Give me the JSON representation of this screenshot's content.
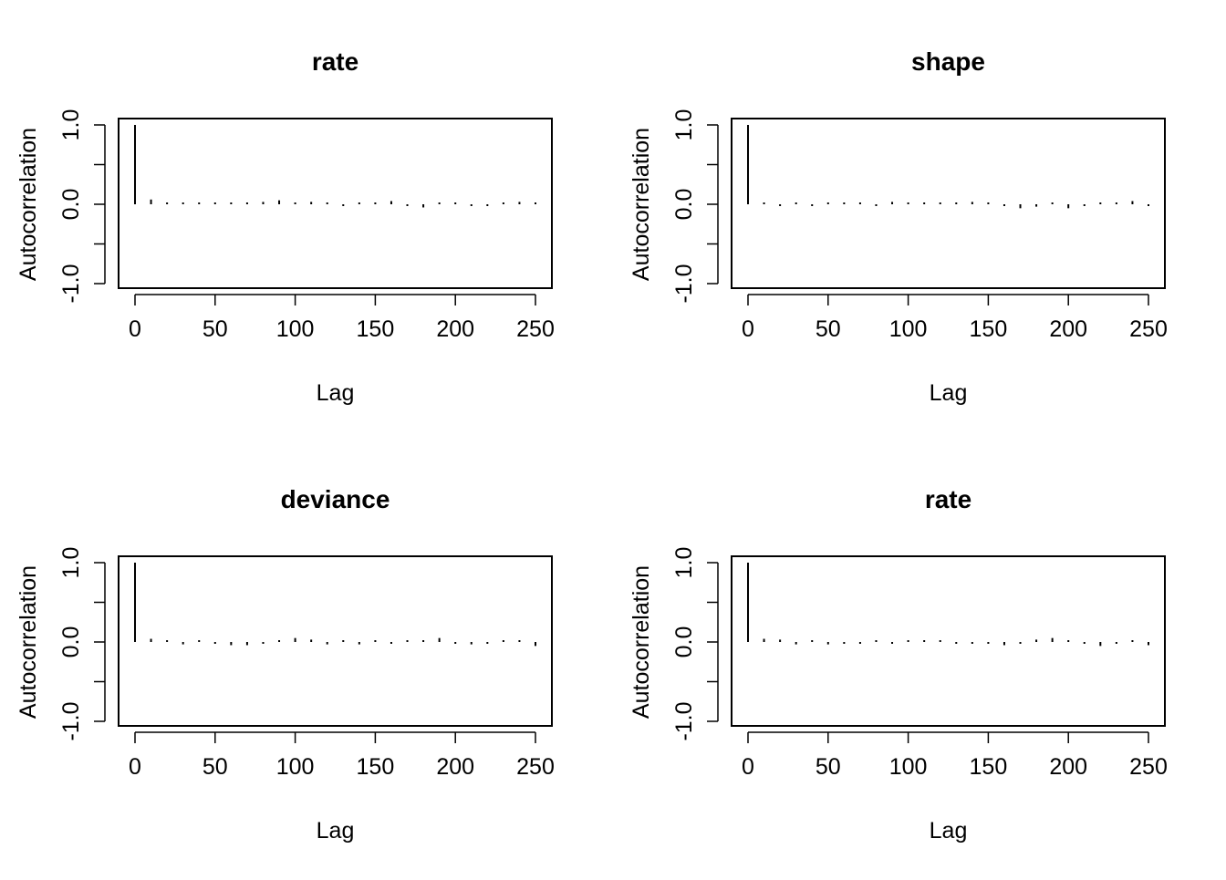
{
  "chart_data": [
    {
      "type": "bar",
      "title": "rate",
      "xlabel": "Lag",
      "ylabel": "Autocorrelation",
      "xlim": [
        0,
        250
      ],
      "ylim": [
        -1,
        1
      ],
      "x_ticks": [
        "0",
        "50",
        "100",
        "150",
        "200",
        "250"
      ],
      "y_ticks": [
        "-1.0",
        "0.0",
        "1.0"
      ],
      "grid": false,
      "x": [
        0,
        10,
        20,
        30,
        40,
        50,
        60,
        70,
        80,
        90,
        100,
        110,
        120,
        130,
        140,
        150,
        160,
        170,
        180,
        190,
        200,
        210,
        220,
        230,
        240,
        250
      ],
      "values": [
        1.0,
        0.06,
        0.01,
        0.01,
        0.0,
        0.01,
        0.02,
        0.02,
        0.03,
        0.05,
        0.01,
        0.03,
        0.02,
        -0.02,
        0.02,
        0.0,
        0.04,
        -0.02,
        -0.04,
        0.01,
        0.0,
        -0.01,
        -0.01,
        0.0,
        0.03,
        0.0
      ]
    },
    {
      "type": "bar",
      "title": "shape",
      "xlabel": "Lag",
      "ylabel": "Autocorrelation",
      "xlim": [
        0,
        250
      ],
      "ylim": [
        -1,
        1
      ],
      "x_ticks": [
        "0",
        "50",
        "100",
        "150",
        "200",
        "250"
      ],
      "y_ticks": [
        "-1.0",
        "0.0",
        "1.0"
      ],
      "grid": false,
      "x": [
        0,
        10,
        20,
        30,
        40,
        50,
        60,
        70,
        80,
        90,
        100,
        110,
        120,
        130,
        140,
        150,
        160,
        170,
        180,
        190,
        200,
        210,
        220,
        230,
        240,
        250
      ],
      "values": [
        1.0,
        0.01,
        -0.01,
        0.0,
        -0.02,
        0.0,
        0.01,
        0.01,
        -0.02,
        0.03,
        0.01,
        0.01,
        0.02,
        0.02,
        0.03,
        0.01,
        -0.02,
        -0.05,
        -0.03,
        0.02,
        -0.05,
        -0.02,
        0.0,
        0.01,
        0.04,
        -0.01
      ]
    },
    {
      "type": "bar",
      "title": "deviance",
      "xlabel": "Lag",
      "ylabel": "Autocorrelation",
      "xlim": [
        0,
        250
      ],
      "ylim": [
        -1,
        1
      ],
      "x_ticks": [
        "0",
        "50",
        "100",
        "150",
        "200",
        "250"
      ],
      "y_ticks": [
        "-1.0",
        "0.0",
        "1.0"
      ],
      "grid": false,
      "x": [
        0,
        10,
        20,
        30,
        40,
        50,
        60,
        70,
        80,
        90,
        100,
        110,
        120,
        130,
        140,
        150,
        160,
        170,
        180,
        190,
        200,
        210,
        220,
        230,
        240,
        250
      ],
      "values": [
        1.0,
        0.04,
        0.02,
        -0.03,
        0.02,
        -0.02,
        -0.04,
        -0.04,
        -0.02,
        0.01,
        0.05,
        0.03,
        -0.03,
        0.01,
        -0.03,
        0.0,
        -0.02,
        0.01,
        0.02,
        0.05,
        -0.02,
        -0.03,
        -0.02,
        0.0,
        0.01,
        -0.05
      ]
    },
    {
      "type": "bar",
      "title": "rate",
      "xlabel": "Lag",
      "ylabel": "Autocorrelation",
      "xlim": [
        0,
        250
      ],
      "ylim": [
        -1,
        1
      ],
      "x_ticks": [
        "0",
        "50",
        "100",
        "150",
        "200",
        "250"
      ],
      "y_ticks": [
        "-1.0",
        "0.0",
        "1.0"
      ],
      "grid": false,
      "x": [
        0,
        10,
        20,
        30,
        40,
        50,
        60,
        70,
        80,
        90,
        100,
        110,
        120,
        130,
        140,
        150,
        160,
        170,
        180,
        190,
        200,
        210,
        220,
        230,
        240,
        250
      ],
      "values": [
        1.0,
        0.04,
        0.03,
        -0.03,
        0.01,
        -0.03,
        -0.02,
        -0.02,
        0.0,
        -0.01,
        0.02,
        0.02,
        0.02,
        -0.02,
        -0.02,
        -0.01,
        -0.04,
        -0.01,
        0.03,
        0.05,
        0.02,
        -0.01,
        -0.05,
        -0.02,
        0.01,
        -0.04
      ]
    }
  ]
}
